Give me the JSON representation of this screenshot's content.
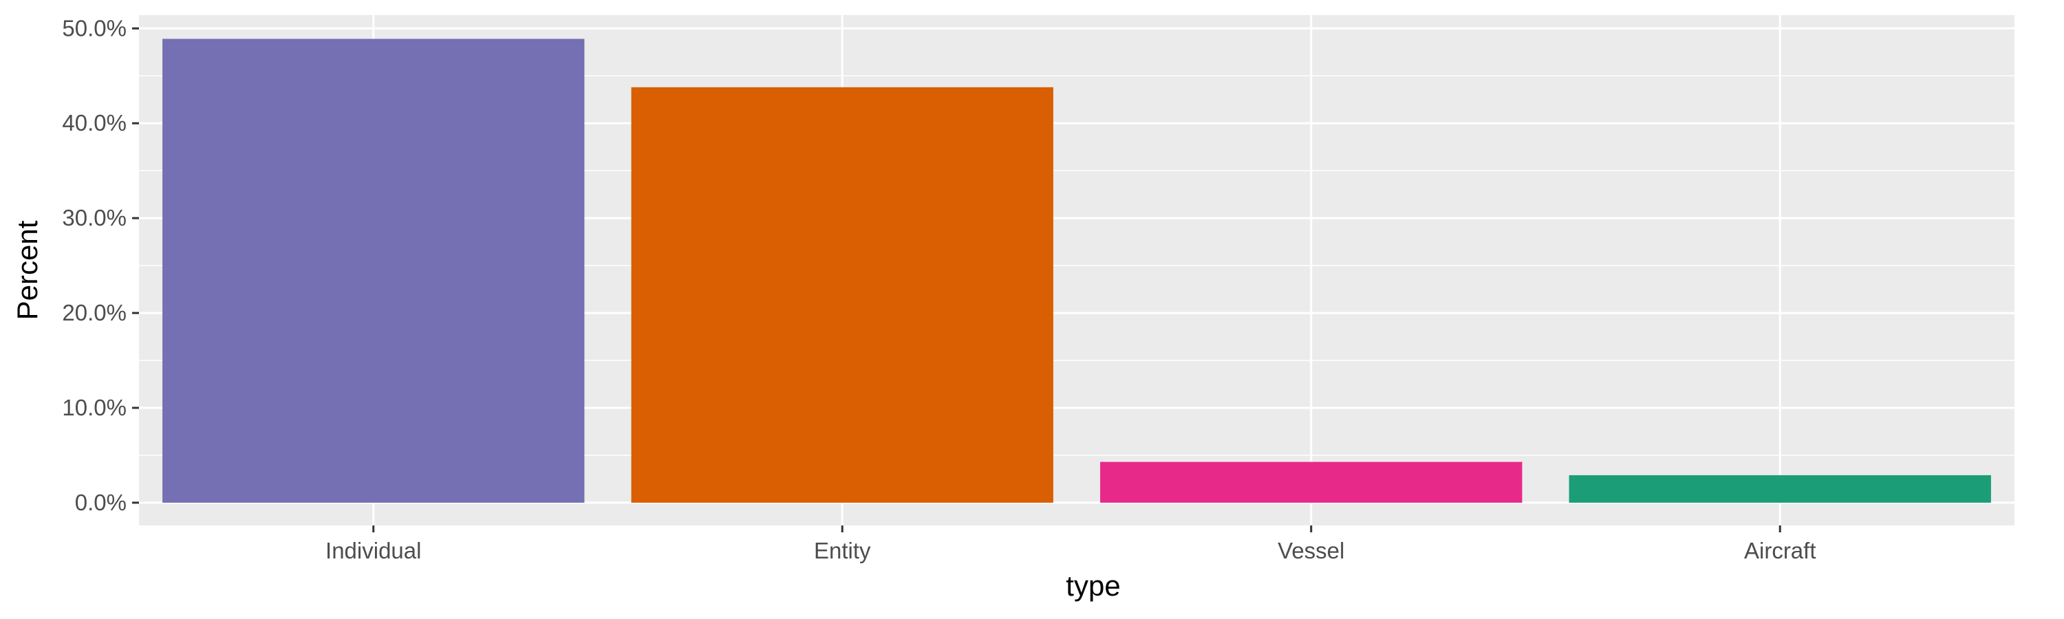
{
  "chart_data": {
    "type": "bar",
    "title": "",
    "xlabel": "type",
    "ylabel": "Percent",
    "categories": [
      "Individual",
      "Entity",
      "Vessel",
      "Aircraft"
    ],
    "values": [
      48.9,
      43.8,
      4.3,
      2.9
    ],
    "colors": [
      "#7570b3",
      "#d95f02",
      "#e7298a",
      "#1b9e77"
    ],
    "ylim": [
      -2.4,
      51.4
    ],
    "yticks": [
      0,
      10,
      20,
      30,
      40,
      50
    ],
    "ytick_labels": [
      "0.0%",
      "10.0%",
      "20.0%",
      "30.0%",
      "40.0%",
      "50.0%"
    ],
    "grid": true,
    "legend": "none",
    "panel_background": "#ebebeb",
    "grid_color": "#ffffff"
  }
}
